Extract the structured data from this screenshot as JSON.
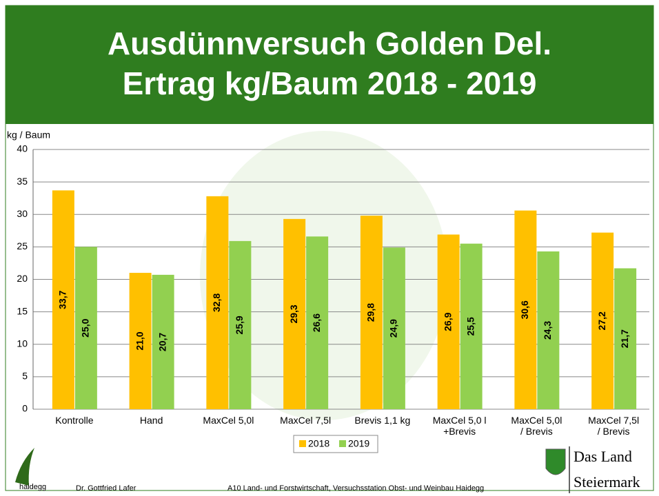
{
  "chart_data": {
    "type": "bar",
    "title": "Ausdünnversuch Golden Del.\nErtrag kg/Baum  2018 - 2019",
    "y_label": "kg / Baum",
    "categories": [
      "Kontrolle",
      "Hand",
      "MaxCel 5,0l",
      "MaxCel 7,5l",
      "Brevis 1,1 kg",
      "MaxCel 5,0 l\n+Brevis",
      "MaxCel 5,0l\n/ Brevis",
      "MaxCel 7,5l\n/ Brevis"
    ],
    "series": [
      {
        "name": "2018",
        "color": "#ffc000",
        "values": [
          33.7,
          21.0,
          32.8,
          29.3,
          29.8,
          26.9,
          30.6,
          27.2
        ],
        "value_labels": [
          "33,7",
          "21,0",
          "32,8",
          "29,3",
          "29,8",
          "26,9",
          "30,6",
          "27,2"
        ]
      },
      {
        "name": "2019",
        "color": "#92d050",
        "values": [
          25.0,
          20.7,
          25.9,
          26.6,
          24.9,
          25.5,
          24.3,
          21.7
        ],
        "value_labels": [
          "25,0",
          "20,7",
          "25,9",
          "26,6",
          "24,9",
          "25,5",
          "24,3",
          "21,7"
        ]
      }
    ],
    "ylim": [
      0,
      40
    ],
    "yticks": [
      0,
      5,
      10,
      15,
      20,
      25,
      30,
      35,
      40
    ],
    "grid": true,
    "legend": "bottom"
  },
  "footer": {
    "logo_text": "haidegg",
    "author": "Dr. Gottfried Lafer",
    "institution": "A10 Land- und Forstwirtschaft, Versuchsstation Obst- und Weinbau Haidegg",
    "land_line1": "Das Land",
    "land_line2": "Steiermark"
  }
}
